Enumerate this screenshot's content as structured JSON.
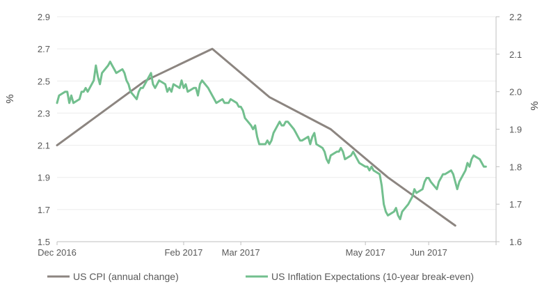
{
  "chart_data": {
    "type": "line",
    "title": "",
    "xlabel": "",
    "ylabel_left": "%",
    "ylabel_right": "%",
    "x_ticks": [
      "Dec 2016",
      "Feb 2017",
      "Mar 2017",
      "May 2017",
      "Jun 2017"
    ],
    "x_tick_dates": [
      "2016-12-01",
      "2017-02-01",
      "2017-03-01",
      "2017-05-01",
      "2017-06-01"
    ],
    "x_range": [
      "2016-12-01",
      "2017-07-04"
    ],
    "left_axis": {
      "min": 1.5,
      "max": 2.9,
      "ticks": [
        "1.5",
        "1.7",
        "1.9",
        "2.1",
        "2.3",
        "2.5",
        "2.7",
        "2.9"
      ]
    },
    "right_axis": {
      "min": 1.6,
      "max": 2.2,
      "ticks": [
        "1.6",
        "1.7",
        "1.8",
        "1.9",
        "2.0",
        "2.1",
        "2.2"
      ]
    },
    "grid": "horizontal",
    "legend_position": "bottom",
    "series": [
      {
        "name": "US CPI (annual change)",
        "axis": "left",
        "color": "#8c8580",
        "points": [
          [
            "2016-12-01",
            2.1
          ],
          [
            "2017-01-13",
            2.5
          ],
          [
            "2017-02-15",
            2.7
          ],
          [
            "2017-03-15",
            2.4
          ],
          [
            "2017-04-14",
            2.2
          ],
          [
            "2017-05-12",
            1.9
          ],
          [
            "2017-06-14",
            1.6
          ]
        ]
      },
      {
        "name": "US Inflation Expectations (10-year break-even)",
        "axis": "right",
        "color": "#72bf8e",
        "points": [
          [
            "2016-12-01",
            1.97
          ],
          [
            "2016-12-02",
            1.99
          ],
          [
            "2016-12-05",
            2.0
          ],
          [
            "2016-12-06",
            2.0
          ],
          [
            "2016-12-07",
            1.97
          ],
          [
            "2016-12-08",
            1.99
          ],
          [
            "2016-12-09",
            1.97
          ],
          [
            "2016-12-12",
            1.98
          ],
          [
            "2016-12-13",
            2.0
          ],
          [
            "2016-12-14",
            2.0
          ],
          [
            "2016-12-15",
            2.01
          ],
          [
            "2016-12-16",
            2.0
          ],
          [
            "2016-12-19",
            2.03
          ],
          [
            "2016-12-20",
            2.07
          ],
          [
            "2016-12-21",
            2.04
          ],
          [
            "2016-12-22",
            2.02
          ],
          [
            "2016-12-23",
            2.05
          ],
          [
            "2016-12-26",
            2.07
          ],
          [
            "2016-12-27",
            2.08
          ],
          [
            "2016-12-28",
            2.07
          ],
          [
            "2016-12-29",
            2.06
          ],
          [
            "2016-12-30",
            2.05
          ],
          [
            "2017-01-02",
            2.06
          ],
          [
            "2017-01-03",
            2.05
          ],
          [
            "2017-01-04",
            2.03
          ],
          [
            "2017-01-05",
            2.02
          ],
          [
            "2017-01-06",
            2.0
          ],
          [
            "2017-01-09",
            1.98
          ],
          [
            "2017-01-10",
            2.0
          ],
          [
            "2017-01-11",
            2.01
          ],
          [
            "2017-01-12",
            2.01
          ],
          [
            "2017-01-13",
            2.02
          ],
          [
            "2017-01-16",
            2.05
          ],
          [
            "2017-01-17",
            2.02
          ],
          [
            "2017-01-18",
            2.01
          ],
          [
            "2017-01-19",
            2.02
          ],
          [
            "2017-01-20",
            2.03
          ],
          [
            "2017-01-23",
            2.02
          ],
          [
            "2017-01-24",
            2.0
          ],
          [
            "2017-01-25",
            2.01
          ],
          [
            "2017-01-26",
            2.0
          ],
          [
            "2017-01-27",
            2.02
          ],
          [
            "2017-01-30",
            2.01
          ],
          [
            "2017-01-31",
            2.03
          ],
          [
            "2017-02-01",
            2.01
          ],
          [
            "2017-02-02",
            2.02
          ],
          [
            "2017-02-03",
            2.0
          ],
          [
            "2017-02-06",
            2.01
          ],
          [
            "2017-02-07",
            2.01
          ],
          [
            "2017-02-08",
            1.99
          ],
          [
            "2017-02-09",
            2.02
          ],
          [
            "2017-02-10",
            2.03
          ],
          [
            "2017-02-13",
            2.01
          ],
          [
            "2017-02-14",
            2.0
          ],
          [
            "2017-02-15",
            1.99
          ],
          [
            "2017-02-16",
            1.98
          ],
          [
            "2017-02-17",
            1.97
          ],
          [
            "2017-02-20",
            1.98
          ],
          [
            "2017-02-21",
            1.97
          ],
          [
            "2017-02-22",
            1.97
          ],
          [
            "2017-02-23",
            1.97
          ],
          [
            "2017-02-24",
            1.98
          ],
          [
            "2017-02-27",
            1.97
          ],
          [
            "2017-02-28",
            1.96
          ],
          [
            "2017-03-01",
            1.96
          ],
          [
            "2017-03-02",
            1.95
          ],
          [
            "2017-03-03",
            1.93
          ],
          [
            "2017-03-06",
            1.91
          ],
          [
            "2017-03-07",
            1.9
          ],
          [
            "2017-03-08",
            1.91
          ],
          [
            "2017-03-09",
            1.88
          ],
          [
            "2017-03-10",
            1.86
          ],
          [
            "2017-03-13",
            1.86
          ],
          [
            "2017-03-14",
            1.87
          ],
          [
            "2017-03-15",
            1.86
          ],
          [
            "2017-03-16",
            1.87
          ],
          [
            "2017-03-17",
            1.89
          ],
          [
            "2017-03-20",
            1.92
          ],
          [
            "2017-03-21",
            1.91
          ],
          [
            "2017-03-22",
            1.91
          ],
          [
            "2017-03-23",
            1.92
          ],
          [
            "2017-03-24",
            1.92
          ],
          [
            "2017-03-27",
            1.9
          ],
          [
            "2017-03-28",
            1.89
          ],
          [
            "2017-03-29",
            1.88
          ],
          [
            "2017-03-30",
            1.87
          ],
          [
            "2017-03-31",
            1.87
          ],
          [
            "2017-04-03",
            1.88
          ],
          [
            "2017-04-04",
            1.86
          ],
          [
            "2017-04-05",
            1.88
          ],
          [
            "2017-04-06",
            1.89
          ],
          [
            "2017-04-07",
            1.86
          ],
          [
            "2017-04-10",
            1.85
          ],
          [
            "2017-04-11",
            1.84
          ],
          [
            "2017-04-12",
            1.82
          ],
          [
            "2017-04-13",
            1.81
          ],
          [
            "2017-04-14",
            1.83
          ],
          [
            "2017-04-17",
            1.84
          ],
          [
            "2017-04-18",
            1.84
          ],
          [
            "2017-04-19",
            1.85
          ],
          [
            "2017-04-20",
            1.84
          ],
          [
            "2017-04-21",
            1.82
          ],
          [
            "2017-04-24",
            1.83
          ],
          [
            "2017-04-25",
            1.84
          ],
          [
            "2017-04-26",
            1.83
          ],
          [
            "2017-04-27",
            1.82
          ],
          [
            "2017-04-28",
            1.81
          ],
          [
            "2017-05-01",
            1.8
          ],
          [
            "2017-05-02",
            1.8
          ],
          [
            "2017-05-03",
            1.79
          ],
          [
            "2017-05-04",
            1.8
          ],
          [
            "2017-05-05",
            1.79
          ],
          [
            "2017-05-08",
            1.78
          ],
          [
            "2017-05-09",
            1.75
          ],
          [
            "2017-05-10",
            1.7
          ],
          [
            "2017-05-11",
            1.68
          ],
          [
            "2017-05-12",
            1.67
          ],
          [
            "2017-05-15",
            1.68
          ],
          [
            "2017-05-16",
            1.69
          ],
          [
            "2017-05-17",
            1.67
          ],
          [
            "2017-05-18",
            1.66
          ],
          [
            "2017-05-19",
            1.68
          ],
          [
            "2017-05-22",
            1.7
          ],
          [
            "2017-05-23",
            1.71
          ],
          [
            "2017-05-24",
            1.72
          ],
          [
            "2017-05-25",
            1.74
          ],
          [
            "2017-05-26",
            1.73
          ],
          [
            "2017-05-29",
            1.74
          ],
          [
            "2017-05-30",
            1.76
          ],
          [
            "2017-05-31",
            1.77
          ],
          [
            "2017-06-01",
            1.77
          ],
          [
            "2017-06-02",
            1.76
          ],
          [
            "2017-06-05",
            1.74
          ],
          [
            "2017-06-06",
            1.76
          ],
          [
            "2017-06-07",
            1.77
          ],
          [
            "2017-06-08",
            1.78
          ],
          [
            "2017-06-09",
            1.78
          ],
          [
            "2017-06-12",
            1.79
          ],
          [
            "2017-06-13",
            1.78
          ],
          [
            "2017-06-14",
            1.76
          ],
          [
            "2017-06-15",
            1.74
          ],
          [
            "2017-06-16",
            1.76
          ],
          [
            "2017-06-19",
            1.79
          ],
          [
            "2017-06-20",
            1.81
          ],
          [
            "2017-06-21",
            1.8
          ],
          [
            "2017-06-22",
            1.82
          ],
          [
            "2017-06-23",
            1.83
          ],
          [
            "2017-06-26",
            1.82
          ],
          [
            "2017-06-27",
            1.81
          ],
          [
            "2017-06-28",
            1.8
          ],
          [
            "2017-06-29",
            1.8
          ]
        ]
      }
    ]
  }
}
